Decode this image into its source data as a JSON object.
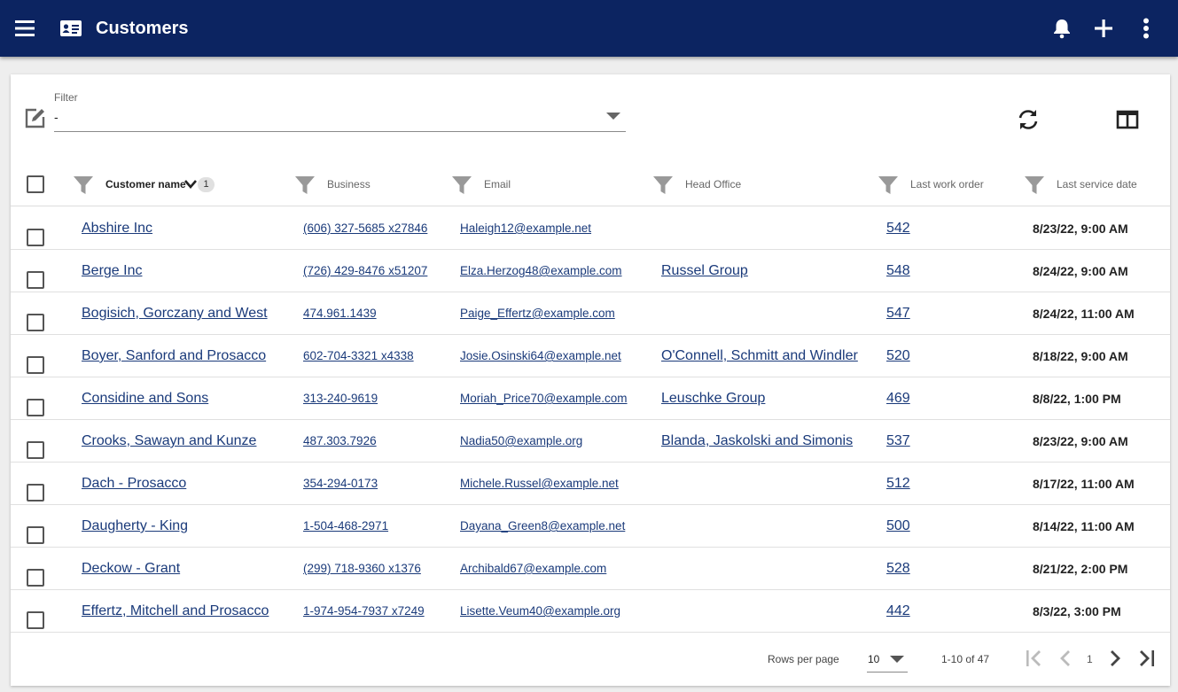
{
  "app": {
    "title": "Customers",
    "icons": {
      "menu": "menu-icon",
      "page": "contact-card-icon",
      "notifications": "bell-icon",
      "add": "plus-icon",
      "more": "more-vertical-icon"
    },
    "colors": {
      "appbar": "#0c2461",
      "link": "#1a3a7a"
    }
  },
  "filter": {
    "label": "Filter",
    "value": "-"
  },
  "table": {
    "columns": [
      {
        "label": "Customer name",
        "sort_badge": "1"
      },
      {
        "label": "Business"
      },
      {
        "label": "Email"
      },
      {
        "label": "Head Office"
      },
      {
        "label": "Last work order"
      },
      {
        "label": "Last service date"
      }
    ],
    "rows": [
      {
        "name": "Abshire Inc",
        "business": "(606) 327-5685 x27846",
        "email": "Haleigh12@example.net",
        "office": "",
        "order": "542",
        "date": "8/23/22, 9:00 AM"
      },
      {
        "name": "Berge Inc",
        "business": "(726) 429-8476 x51207",
        "email": "Elza.Herzog48@example.com",
        "office": "Russel Group",
        "order": "548",
        "date": "8/24/22, 9:00 AM"
      },
      {
        "name": "Bogisich, Gorczany and West",
        "business": "474.961.1439",
        "email": "Paige_Effertz@example.com",
        "office": "",
        "order": "547",
        "date": "8/24/22, 11:00 AM"
      },
      {
        "name": "Boyer, Sanford and Prosacco",
        "business": "602-704-3321 x4338",
        "email": "Josie.Osinski64@example.net",
        "office": "O'Connell, Schmitt and Windler",
        "order": "520",
        "date": "8/18/22, 9:00 AM"
      },
      {
        "name": "Considine and Sons",
        "business": "313-240-9619",
        "email": "Moriah_Price70@example.com",
        "office": "Leuschke Group",
        "order": "469",
        "date": "8/8/22, 1:00 PM"
      },
      {
        "name": "Crooks, Sawayn and Kunze",
        "business": "487.303.7926",
        "email": "Nadia50@example.org",
        "office": "Blanda, Jaskolski and Simonis",
        "order": "537",
        "date": "8/23/22, 9:00 AM"
      },
      {
        "name": "Dach - Prosacco",
        "business": "354-294-0173",
        "email": "Michele.Russel@example.net",
        "office": "",
        "order": "512",
        "date": "8/17/22, 11:00 AM"
      },
      {
        "name": "Daugherty - King",
        "business": "1-504-468-2971",
        "email": "Dayana_Green8@example.net",
        "office": "",
        "order": "500",
        "date": "8/14/22, 11:00 AM"
      },
      {
        "name": "Deckow - Grant",
        "business": "(299) 718-9360 x1376",
        "email": "Archibald67@example.com",
        "office": "",
        "order": "528",
        "date": "8/21/22, 2:00 PM"
      },
      {
        "name": "Effertz, Mitchell and Prosacco",
        "business": "1-974-954-7937 x7249",
        "email": "Lisette.Veum40@example.org",
        "office": "",
        "order": "442",
        "date": "8/3/22, 3:00 PM"
      }
    ]
  },
  "pagination": {
    "rows_per_page_label": "Rows per page",
    "rows_per_page": "10",
    "range": "1-10 of 47",
    "page": "1"
  }
}
